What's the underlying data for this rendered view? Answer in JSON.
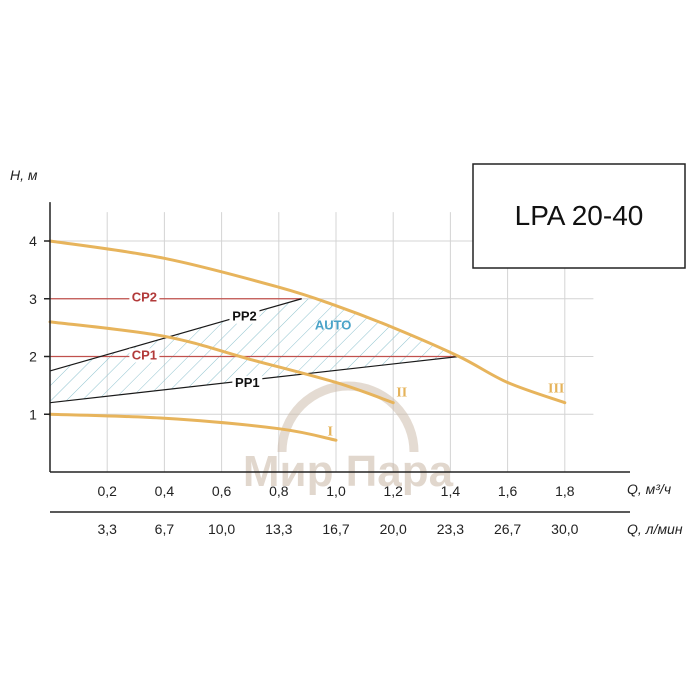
{
  "chart_data": {
    "type": "line",
    "title": "LPA 20-40",
    "ylabel": "H, м",
    "xlabel": "Q, м³/ч",
    "xlabel2": "Q, л/мин",
    "xlim": [
      0,
      1.9
    ],
    "ylim": [
      0,
      4.5
    ],
    "yticks": [
      "1",
      "2",
      "3",
      "4"
    ],
    "xticks": [
      "0,2",
      "0,4",
      "0,6",
      "0,8",
      "1,0",
      "1,2",
      "1,4",
      "1,6",
      "1,8"
    ],
    "xticks2": [
      "3,3",
      "6,7",
      "10,0",
      "13,3",
      "16,7",
      "20,0",
      "23,3",
      "26,7",
      "30,0"
    ],
    "grid": true,
    "series": [
      {
        "name": "III",
        "x": [
          0,
          0.4,
          0.8,
          1.0,
          1.2,
          1.43,
          1.6,
          1.8
        ],
        "y": [
          4.0,
          3.7,
          3.2,
          2.88,
          2.5,
          2.0,
          1.55,
          1.2
        ]
      },
      {
        "name": "II",
        "x": [
          0,
          0.4,
          0.7,
          1.0,
          1.2
        ],
        "y": [
          2.6,
          2.35,
          1.95,
          1.55,
          1.2
        ]
      },
      {
        "name": "I",
        "x": [
          0,
          0.4,
          0.8,
          1.0
        ],
        "y": [
          1.0,
          0.93,
          0.75,
          0.55
        ]
      },
      {
        "name": "CP2",
        "x": [
          0,
          0.88
        ],
        "y": [
          3.0,
          3.0
        ]
      },
      {
        "name": "CP1",
        "x": [
          0,
          1.43
        ],
        "y": [
          2.0,
          2.0
        ]
      },
      {
        "name": "PP2",
        "x": [
          0,
          0.88
        ],
        "y": [
          1.75,
          3.0
        ]
      },
      {
        "name": "PP1",
        "x": [
          0,
          1.43
        ],
        "y": [
          1.2,
          2.0
        ]
      }
    ],
    "region_label": "AUTO",
    "watermark": "Мир Пара"
  }
}
